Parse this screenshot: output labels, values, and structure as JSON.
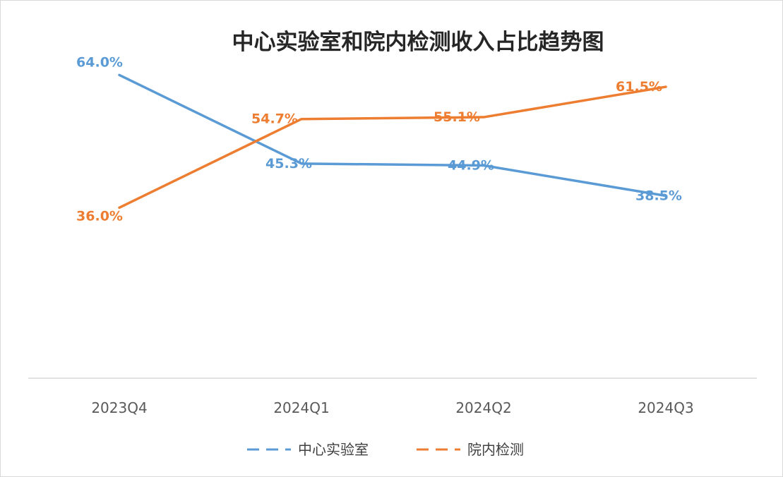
{
  "chart_data": {
    "type": "line",
    "title": "中心实验室和院内检测收入占比趋势图",
    "xlabel": "",
    "ylabel": "",
    "categories": [
      "2023Q4",
      "2024Q1",
      "2024Q2",
      "2024Q3"
    ],
    "ylim": [
      0,
      70
    ],
    "grid": false,
    "legend_position": "bottom",
    "series": [
      {
        "name": "中心实验室",
        "color": "#5b9bd5",
        "values": [
          64.0,
          45.3,
          44.9,
          38.5
        ],
        "labels": [
          "64.0%",
          "45.3%",
          "44.9%",
          "38.5%"
        ]
      },
      {
        "name": "院内检测",
        "color": "#ed7d31",
        "values": [
          36.0,
          54.7,
          55.1,
          61.5
        ],
        "labels": [
          "36.0%",
          "54.7%",
          "55.1%",
          "61.5%"
        ]
      }
    ]
  }
}
